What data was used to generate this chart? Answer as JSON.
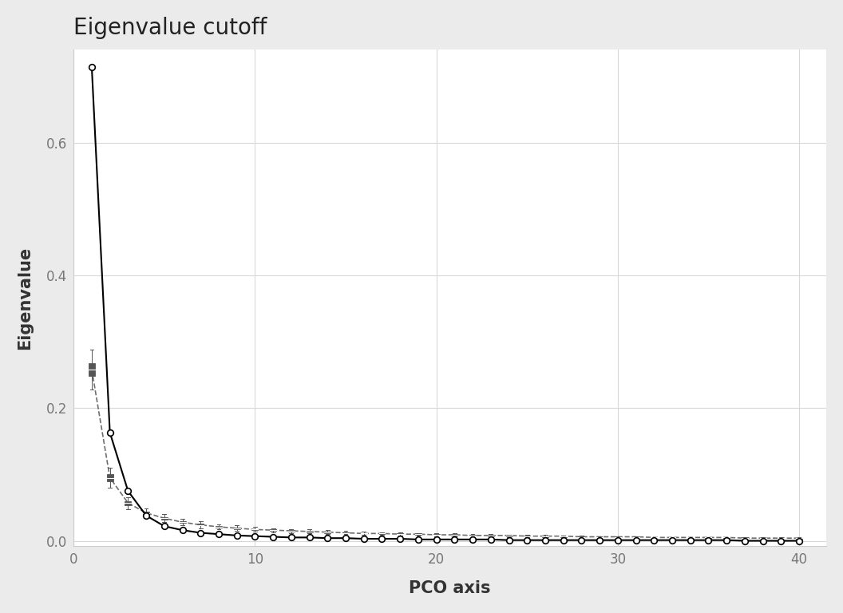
{
  "title": "Eigenvalue cutoff",
  "xlabel": "PCO axis",
  "ylabel": "Eigenvalue",
  "n_axes": 40,
  "observed_eigenvalues": [
    0.714,
    0.163,
    0.075,
    0.038,
    0.022,
    0.016,
    0.012,
    0.01,
    0.008,
    0.007,
    0.006,
    0.005,
    0.005,
    0.004,
    0.004,
    0.003,
    0.003,
    0.003,
    0.002,
    0.002,
    0.002,
    0.002,
    0.002,
    0.001,
    0.001,
    0.001,
    0.001,
    0.001,
    0.001,
    0.001,
    0.001,
    0.001,
    0.001,
    0.001,
    0.001,
    0.001,
    0.0,
    0.0,
    0.0,
    0.0
  ],
  "random_medians": [
    0.258,
    0.095,
    0.057,
    0.042,
    0.034,
    0.028,
    0.024,
    0.021,
    0.019,
    0.017,
    0.016,
    0.015,
    0.014,
    0.013,
    0.012,
    0.011,
    0.011,
    0.01,
    0.01,
    0.009,
    0.009,
    0.008,
    0.008,
    0.008,
    0.007,
    0.007,
    0.007,
    0.006,
    0.006,
    0.006,
    0.006,
    0.005,
    0.005,
    0.005,
    0.005,
    0.005,
    0.004,
    0.004,
    0.004,
    0.004
  ],
  "random_q25": [
    0.248,
    0.09,
    0.054,
    0.04,
    0.032,
    0.027,
    0.023,
    0.02,
    0.018,
    0.016,
    0.015,
    0.014,
    0.013,
    0.012,
    0.011,
    0.011,
    0.01,
    0.01,
    0.009,
    0.009,
    0.008,
    0.008,
    0.007,
    0.007,
    0.007,
    0.006,
    0.006,
    0.006,
    0.006,
    0.005,
    0.005,
    0.005,
    0.005,
    0.005,
    0.004,
    0.004,
    0.004,
    0.004,
    0.004,
    0.003
  ],
  "random_q75": [
    0.268,
    0.1,
    0.06,
    0.044,
    0.036,
    0.03,
    0.026,
    0.022,
    0.02,
    0.018,
    0.017,
    0.016,
    0.015,
    0.014,
    0.013,
    0.012,
    0.012,
    0.011,
    0.011,
    0.01,
    0.01,
    0.009,
    0.009,
    0.008,
    0.008,
    0.007,
    0.007,
    0.007,
    0.006,
    0.006,
    0.006,
    0.006,
    0.005,
    0.005,
    0.005,
    0.005,
    0.005,
    0.004,
    0.004,
    0.004
  ],
  "random_whisker_lo": [
    0.228,
    0.08,
    0.048,
    0.035,
    0.028,
    0.023,
    0.019,
    0.017,
    0.015,
    0.014,
    0.013,
    0.012,
    0.011,
    0.01,
    0.01,
    0.009,
    0.009,
    0.008,
    0.008,
    0.007,
    0.007,
    0.007,
    0.006,
    0.006,
    0.006,
    0.005,
    0.005,
    0.005,
    0.005,
    0.004,
    0.004,
    0.004,
    0.004,
    0.004,
    0.003,
    0.003,
    0.003,
    0.003,
    0.003,
    0.003
  ],
  "random_whisker_hi": [
    0.288,
    0.11,
    0.066,
    0.049,
    0.04,
    0.033,
    0.029,
    0.025,
    0.023,
    0.021,
    0.019,
    0.018,
    0.017,
    0.016,
    0.015,
    0.014,
    0.013,
    0.013,
    0.012,
    0.011,
    0.011,
    0.01,
    0.01,
    0.009,
    0.009,
    0.009,
    0.008,
    0.008,
    0.007,
    0.007,
    0.007,
    0.006,
    0.006,
    0.006,
    0.006,
    0.006,
    0.005,
    0.005,
    0.005,
    0.005
  ],
  "ylim": [
    -0.008,
    0.74
  ],
  "xlim": [
    0.0,
    41.5
  ],
  "xticks": [
    0,
    10,
    20,
    30,
    40
  ],
  "yticks": [
    0.0,
    0.2,
    0.4,
    0.6
  ],
  "bg_color": "#ebebeb",
  "plot_bg_color": "#ffffff",
  "line_color": "#000000",
  "box_color": "#555555",
  "grid_color": "#d8d8d8",
  "title_fontsize": 20,
  "label_fontsize": 15,
  "tick_fontsize": 12
}
